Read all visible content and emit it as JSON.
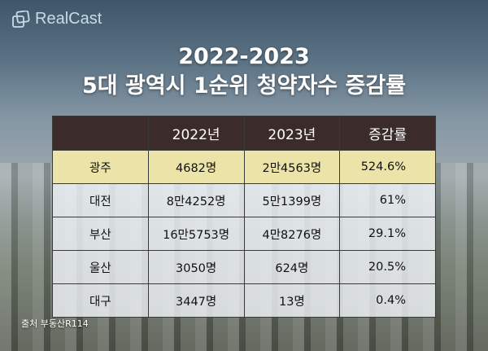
{
  "logo": {
    "text": "RealCast"
  },
  "title": {
    "line1": "2022-2023",
    "line2": "5대 광역시 1순위 청약자수 증감률"
  },
  "table": {
    "headers": [
      "",
      "2022년",
      "2023년",
      "증감률"
    ],
    "rows": [
      {
        "city": "광주",
        "y2022": "4682명",
        "y2023": "2만4563명",
        "change": "524.6%"
      },
      {
        "city": "대전",
        "y2022": "8만4252명",
        "y2023": "5만1399명",
        "change": "61%"
      },
      {
        "city": "부산",
        "y2022": "16만5753명",
        "y2023": "4만8276명",
        "change": "29.1%"
      },
      {
        "city": "울산",
        "y2022": "3050명",
        "y2023": "624명",
        "change": "20.5%"
      },
      {
        "city": "대구",
        "y2022": "3447명",
        "y2023": "13명",
        "change": "0.4%"
      }
    ]
  },
  "source": "출처 부동산R114",
  "colors": {
    "header_bg": "#372624",
    "highlight_row": "#ece3a8"
  }
}
